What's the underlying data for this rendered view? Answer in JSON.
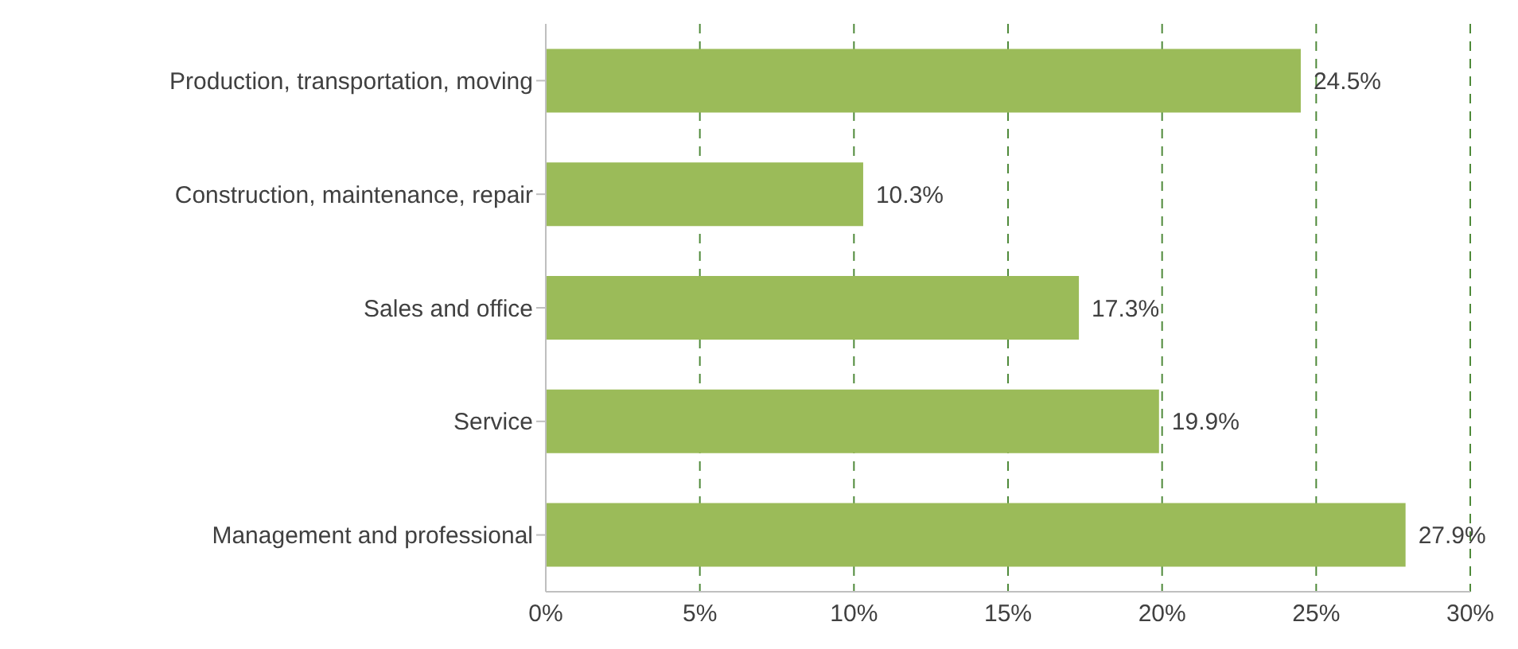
{
  "chart_data": {
    "type": "bar",
    "orientation": "horizontal",
    "categories": [
      "Production, transportation, moving",
      "Construction, maintenance, repair",
      "Sales and office",
      "Service",
      "Management and professional"
    ],
    "values": [
      24.5,
      10.3,
      17.3,
      19.9,
      27.9
    ],
    "value_labels": [
      "24.5%",
      "10.3%",
      "17.3%",
      "19.9%",
      "27.9%"
    ],
    "color": "#9bbb59",
    "xlim": [
      0,
      30
    ],
    "xticks": [
      {
        "value": 0,
        "label": "0%"
      },
      {
        "value": 5,
        "label": "5%"
      },
      {
        "value": 10,
        "label": "10%"
      },
      {
        "value": 15,
        "label": "15%"
      },
      {
        "value": 20,
        "label": "20%"
      },
      {
        "value": 25,
        "label": "25%"
      },
      {
        "value": 30,
        "label": "30%"
      }
    ],
    "grid": "x"
  }
}
